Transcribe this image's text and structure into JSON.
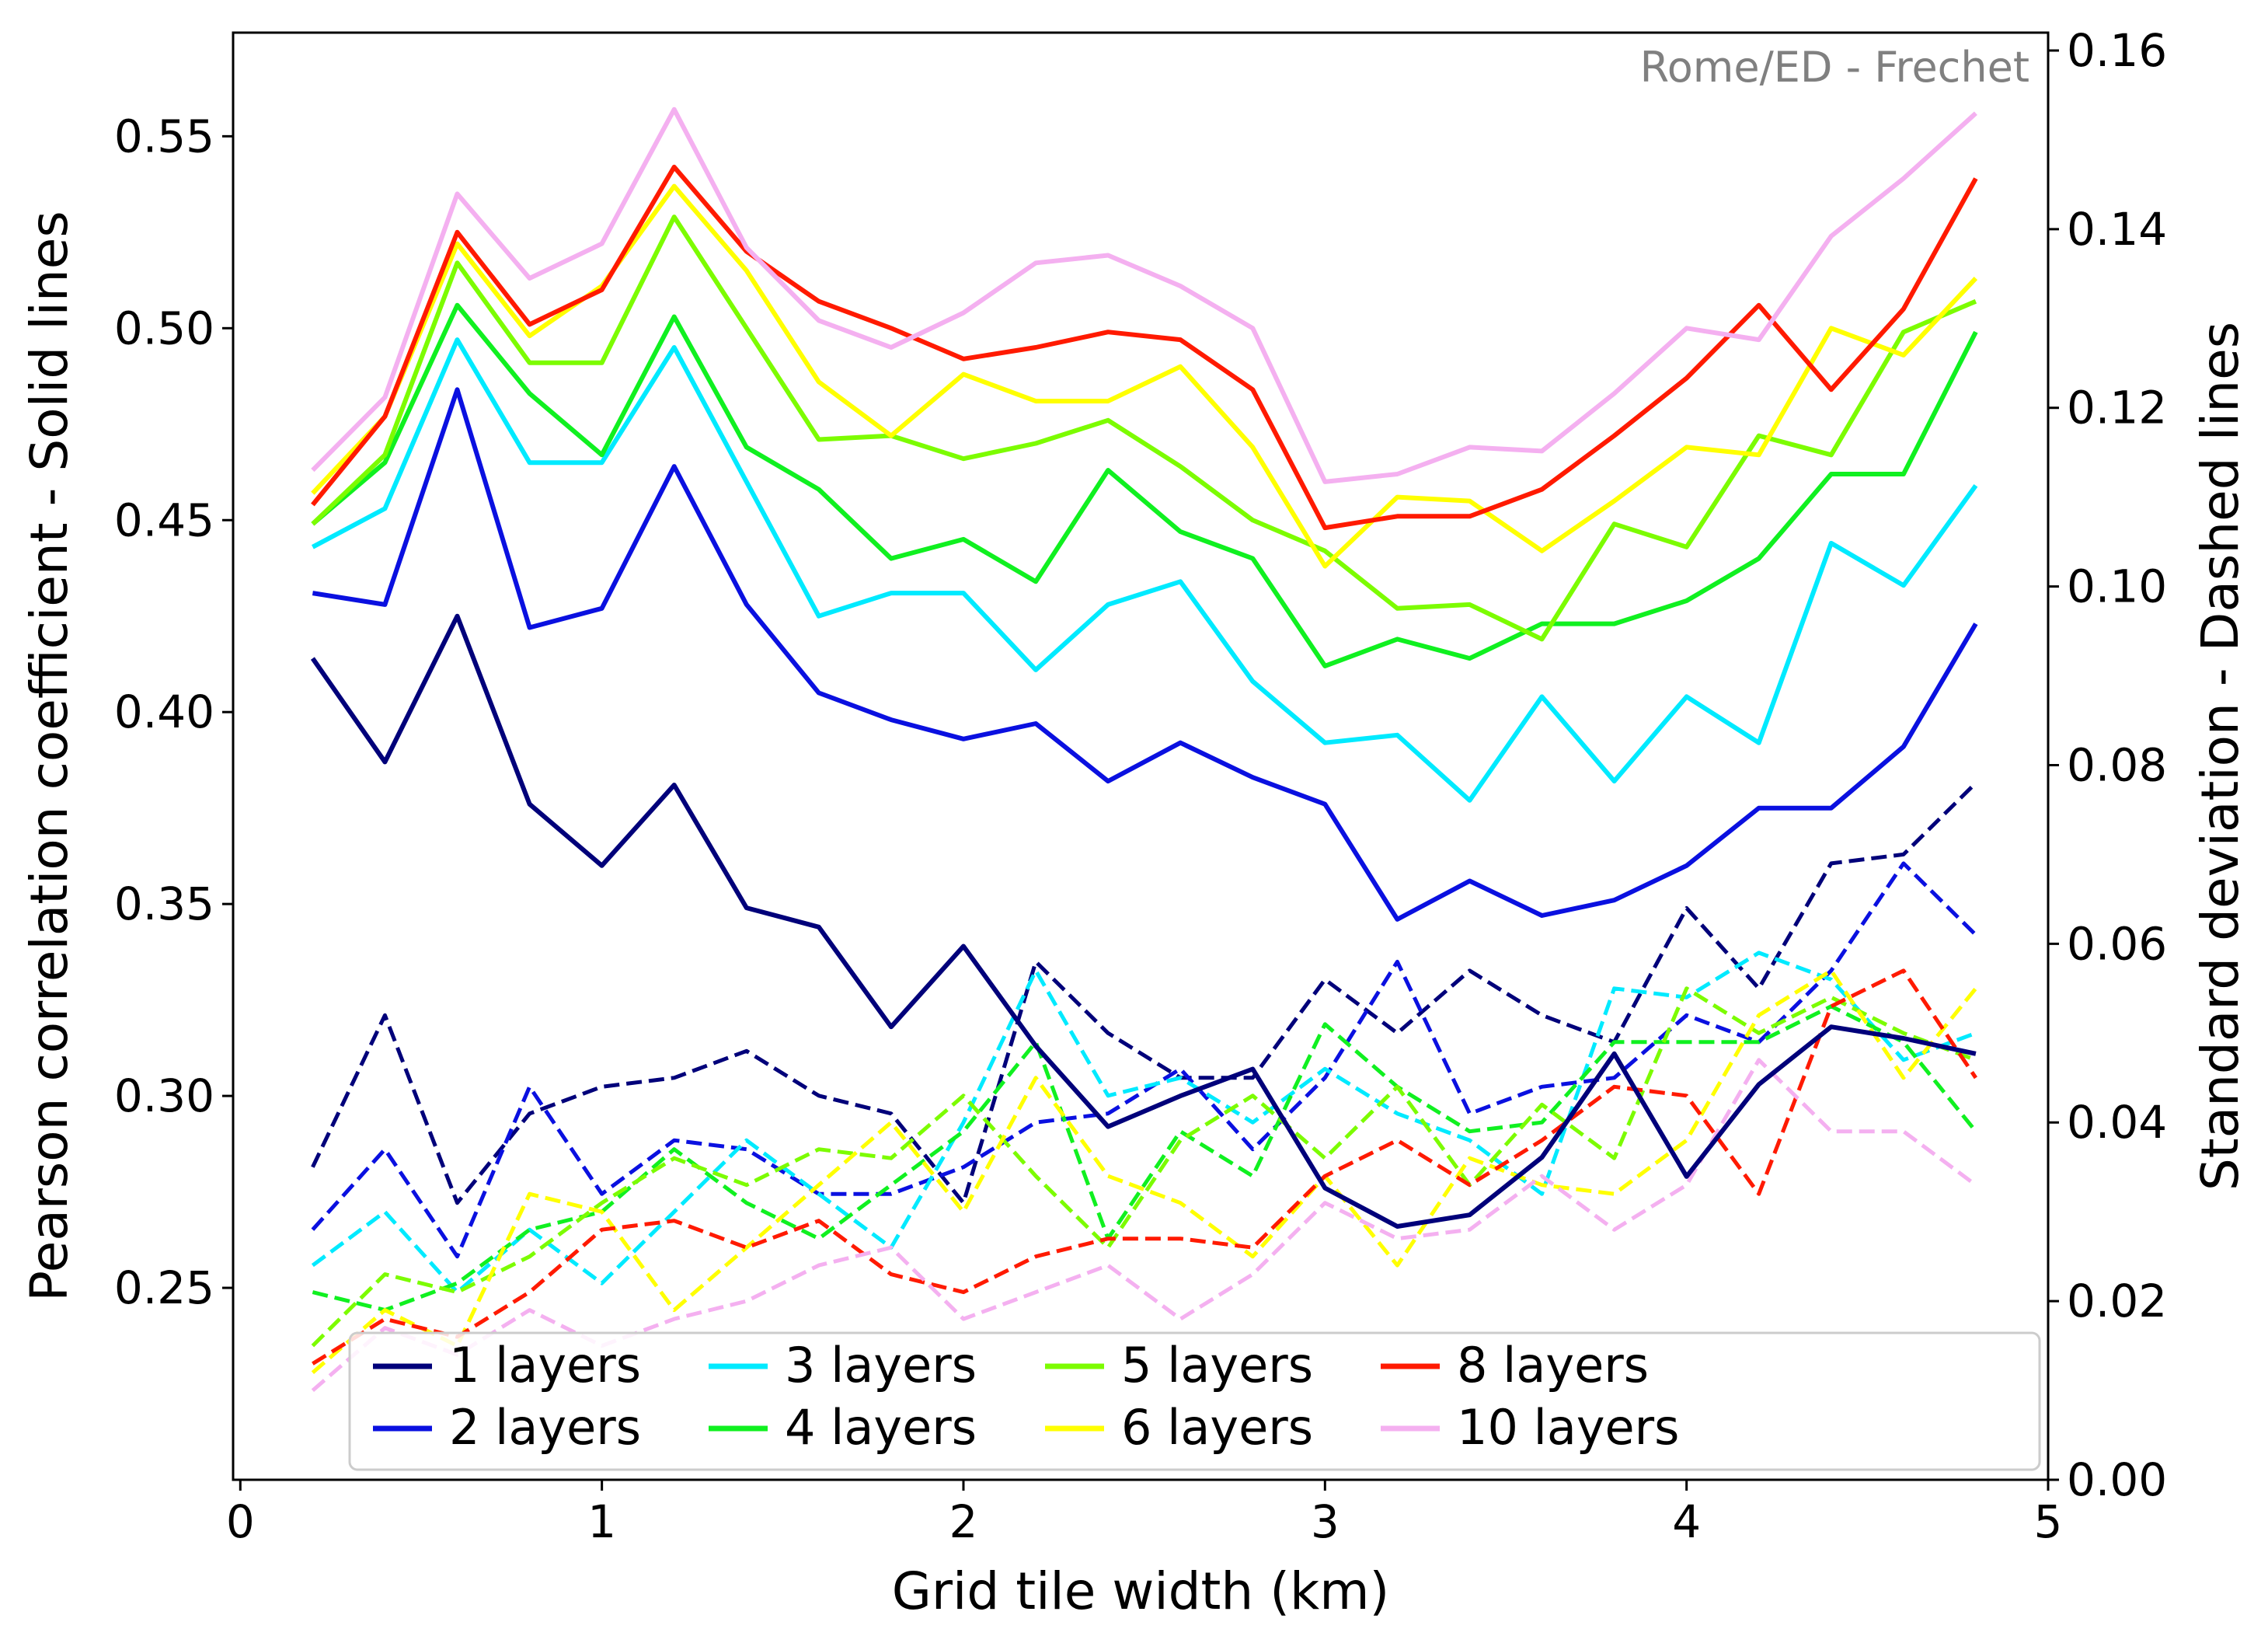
{
  "chart_data": {
    "type": "line",
    "annotation": "Rome/ED - Frechet",
    "xlabel": "Grid tile width (km)",
    "ylabel_left": "Pearson correlation coefficient - Solid lines",
    "ylabel_right": "Standard deviation - Dashed lines",
    "xlim": [
      -0.02,
      5.0
    ],
    "ylim_left": [
      0.2,
      0.577
    ],
    "ylim_right": [
      0.0,
      0.162
    ],
    "x_ticks": [
      "0",
      "1",
      "2",
      "3",
      "4",
      "5"
    ],
    "y_left_ticks": [
      "0.25",
      "0.30",
      "0.35",
      "0.40",
      "0.45",
      "0.50",
      "0.55"
    ],
    "y_right_ticks": [
      "0.00",
      "0.02",
      "0.04",
      "0.06",
      "0.08",
      "0.10",
      "0.12",
      "0.14",
      "0.16"
    ],
    "grid": false,
    "legend_position": "bottom",
    "x": [
      0.2,
      0.4,
      0.6,
      0.8,
      1.0,
      1.2,
      1.4,
      1.6,
      1.8,
      2.0,
      2.2,
      2.4,
      2.6,
      2.8,
      3.0,
      3.2,
      3.4,
      3.6,
      3.8,
      4.0,
      4.2,
      4.4,
      4.6,
      4.8
    ],
    "series": [
      {
        "name": "1 layers",
        "color": "#00007a",
        "pearson": [
          0.414,
          0.387,
          0.425,
          0.376,
          0.36,
          0.381,
          0.349,
          0.344,
          0.318,
          0.339,
          0.313,
          0.292,
          0.3,
          0.307,
          0.276,
          0.266,
          0.269,
          0.284,
          0.311,
          0.279,
          0.303,
          0.318,
          0.315,
          0.311
        ],
        "std": [
          0.035,
          0.052,
          0.031,
          0.041,
          0.044,
          0.045,
          0.048,
          0.043,
          0.041,
          0.031,
          0.058,
          0.05,
          0.045,
          0.045,
          0.056,
          0.05,
          0.057,
          0.052,
          0.049,
          0.064,
          0.055,
          0.069,
          0.07,
          0.078
        ]
      },
      {
        "name": "2 layers",
        "color": "#0a10e0",
        "pearson": [
          0.431,
          0.428,
          0.484,
          0.422,
          0.427,
          0.464,
          0.428,
          0.405,
          0.398,
          0.393,
          0.397,
          0.382,
          0.392,
          0.383,
          0.376,
          0.346,
          0.356,
          0.347,
          0.351,
          0.36,
          0.375,
          0.375,
          0.391,
          0.423
        ],
        "std": [
          0.028,
          0.037,
          0.025,
          0.044,
          0.032,
          0.038,
          0.037,
          0.032,
          0.032,
          0.035,
          0.04,
          0.041,
          0.046,
          0.037,
          0.045,
          0.058,
          0.041,
          0.044,
          0.045,
          0.052,
          0.049,
          0.057,
          0.069,
          0.061
        ]
      },
      {
        "name": "3 layers",
        "color": "#00eaff",
        "pearson": [
          0.443,
          0.453,
          0.497,
          0.465,
          0.465,
          0.495,
          0.46,
          0.425,
          0.431,
          0.431,
          0.411,
          0.428,
          0.434,
          0.408,
          0.392,
          0.394,
          0.377,
          0.404,
          0.382,
          0.404,
          0.392,
          0.444,
          0.433,
          0.459
        ],
        "std": [
          0.024,
          0.03,
          0.021,
          0.028,
          0.022,
          0.03,
          0.038,
          0.032,
          0.026,
          0.04,
          0.057,
          0.043,
          0.045,
          0.04,
          0.046,
          0.041,
          0.038,
          0.032,
          0.055,
          0.054,
          0.059,
          0.056,
          0.047,
          0.05
        ]
      },
      {
        "name": "4 layers",
        "color": "#10f020",
        "pearson": [
          0.449,
          0.465,
          0.506,
          0.483,
          0.467,
          0.503,
          0.469,
          0.458,
          0.44,
          0.445,
          0.434,
          0.463,
          0.447,
          0.44,
          0.412,
          0.419,
          0.414,
          0.423,
          0.423,
          0.429,
          0.44,
          0.462,
          0.462,
          0.499
        ],
        "std": [
          0.021,
          0.019,
          0.022,
          0.028,
          0.03,
          0.037,
          0.031,
          0.027,
          0.033,
          0.039,
          0.049,
          0.027,
          0.039,
          0.034,
          0.051,
          0.044,
          0.039,
          0.04,
          0.049,
          0.049,
          0.049,
          0.053,
          0.049,
          0.039
        ]
      },
      {
        "name": "5 layers",
        "color": "#7cfc00",
        "pearson": [
          0.449,
          0.467,
          0.517,
          0.491,
          0.491,
          0.529,
          0.5,
          0.471,
          0.472,
          0.466,
          0.47,
          0.476,
          0.464,
          0.45,
          0.442,
          0.427,
          0.428,
          0.419,
          0.449,
          0.443,
          0.472,
          0.467,
          0.499,
          0.507
        ],
        "std": [
          0.015,
          0.023,
          0.021,
          0.025,
          0.031,
          0.036,
          0.033,
          0.037,
          0.036,
          0.043,
          0.034,
          0.026,
          0.038,
          0.043,
          0.036,
          0.044,
          0.033,
          0.042,
          0.036,
          0.055,
          0.05,
          0.054,
          0.05,
          0.047
        ]
      },
      {
        "name": "6 layers",
        "color": "#ffff00",
        "pearson": [
          0.457,
          0.477,
          0.522,
          0.498,
          0.511,
          0.537,
          0.515,
          0.486,
          0.472,
          0.488,
          0.481,
          0.481,
          0.49,
          0.469,
          0.438,
          0.456,
          0.455,
          0.442,
          0.455,
          0.469,
          0.467,
          0.5,
          0.493,
          0.513
        ],
        "std": [
          0.012,
          0.019,
          0.015,
          0.032,
          0.03,
          0.019,
          0.026,
          0.033,
          0.04,
          0.03,
          0.045,
          0.034,
          0.031,
          0.025,
          0.034,
          0.024,
          0.036,
          0.033,
          0.032,
          0.038,
          0.052,
          0.057,
          0.045,
          0.055
        ]
      },
      {
        "name": "8 layers",
        "color": "#ff1a00",
        "pearson": [
          0.454,
          0.477,
          0.525,
          0.501,
          0.51,
          0.542,
          0.52,
          0.507,
          0.5,
          0.492,
          0.495,
          0.499,
          0.497,
          0.484,
          0.448,
          0.451,
          0.451,
          0.458,
          0.472,
          0.487,
          0.506,
          0.484,
          0.505,
          0.539
        ],
        "std": [
          0.013,
          0.018,
          0.016,
          0.021,
          0.028,
          0.029,
          0.026,
          0.029,
          0.023,
          0.021,
          0.025,
          0.027,
          0.027,
          0.026,
          0.034,
          0.038,
          0.033,
          0.038,
          0.044,
          0.043,
          0.032,
          0.053,
          0.057,
          0.045
        ]
      },
      {
        "name": "10 layers",
        "color": "#f4b0f0",
        "pearson": [
          0.463,
          0.482,
          0.535,
          0.513,
          0.522,
          0.557,
          0.521,
          0.502,
          0.495,
          0.504,
          0.517,
          0.519,
          0.511,
          0.5,
          0.46,
          0.462,
          0.469,
          0.468,
          0.483,
          0.5,
          0.497,
          0.524,
          0.539,
          0.556
        ],
        "std": [
          0.01,
          0.017,
          0.014,
          0.019,
          0.015,
          0.018,
          0.02,
          0.024,
          0.026,
          0.018,
          0.021,
          0.024,
          0.018,
          0.023,
          0.031,
          0.027,
          0.028,
          0.034,
          0.028,
          0.033,
          0.047,
          0.039,
          0.039,
          0.033
        ]
      }
    ]
  }
}
